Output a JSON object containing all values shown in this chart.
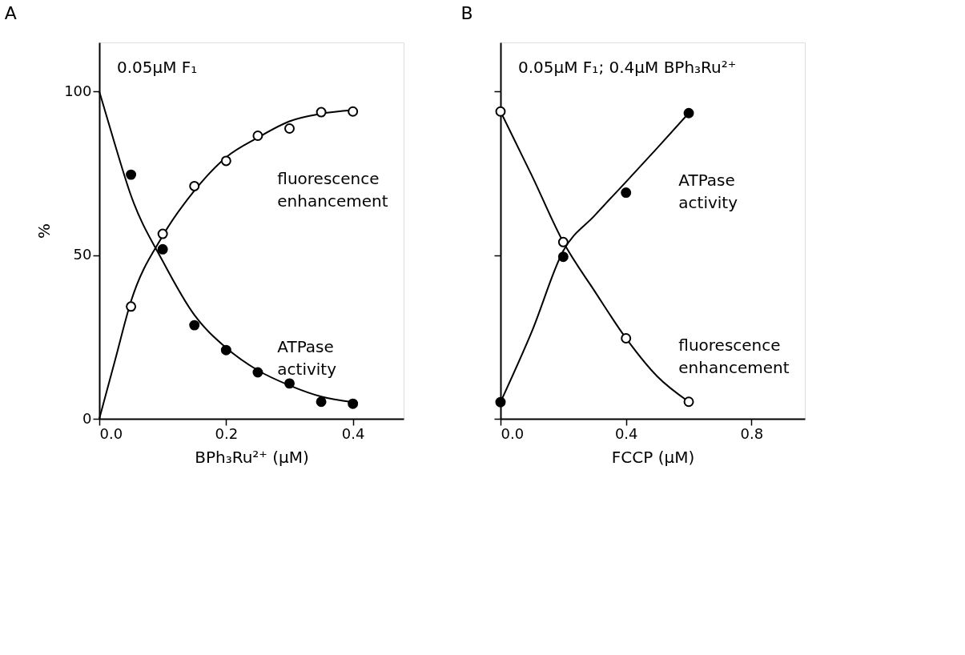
{
  "chart_data": [
    {
      "type": "scatter",
      "title": "A",
      "xlabel": "BPh₃Ru²⁺ (μM)",
      "ylabel": "%",
      "xlim": [
        0,
        0.48
      ],
      "ylim": [
        0,
        115
      ],
      "xticks": [
        {
          "value": 0,
          "label": "0.0"
        },
        0.2,
        0.4
      ],
      "yticks": [
        0,
        50,
        100
      ],
      "grid": false,
      "annotations": [
        "0.05μM F₁"
      ],
      "series": [
        {
          "type": "line",
          "color": "#000000",
          "x": [
            0,
            0.025,
            0.05,
            0.1,
            0.15,
            0.2,
            0.25,
            0.3,
            0.35,
            0.4
          ],
          "values": [
            0,
            18,
            35.9,
            55.9,
            69.7,
            79.9,
            85.9,
            90.9,
            93.2,
            94.3
          ]
        },
        {
          "type": "line",
          "color": "#000000",
          "x": [
            0,
            0.025,
            0.05,
            0.1,
            0.15,
            0.2,
            0.25,
            0.3,
            0.35,
            0.4
          ],
          "values": [
            100,
            83.6,
            68.2,
            48.2,
            31.7,
            21.7,
            14.8,
            10.2,
            6.8,
            5.1
          ]
        },
        {
          "name": "fluorescence enhancement",
          "marker": "circle",
          "color": "#ffffff",
          "x": [
            0.05,
            0.1,
            0.15,
            0.2,
            0.25,
            0.3,
            0.35,
            0.4
          ],
          "values": [
            34.3,
            56.5,
            71.1,
            78.8,
            86.5,
            88.7,
            93.7,
            93.9
          ]
        },
        {
          "name": "ATPase activity",
          "marker": "circle",
          "color": "#000000",
          "x": [
            0.05,
            0.1,
            0.15,
            0.2,
            0.25,
            0.3,
            0.35,
            0.4
          ],
          "values": [
            74.6,
            51.8,
            28.6,
            21.0,
            14.2,
            10.8,
            5.2,
            4.6
          ]
        }
      ]
    },
    {
      "type": "scatter",
      "title": "B",
      "xlabel": "FCCP (μM)",
      "xlim": [
        0,
        0.97
      ],
      "ylim": [
        0,
        115
      ],
      "xticks": [
        {
          "value": 0,
          "label": "0.0"
        },
        0.4,
        0.8
      ],
      "yticks": [
        0,
        50,
        100
      ],
      "tick_labels": "x",
      "grid": false,
      "annotations": [
        "0.05μM F₁; 0.4μM BPh₃Ru²⁺"
      ],
      "series": [
        {
          "type": "line",
          "color": "#000000",
          "x": [
            0,
            0.1,
            0.2,
            0.3,
            0.4,
            0.5,
            0.6
          ],
          "values": [
            5.1,
            26.7,
            51.3,
            62.1,
            72.4,
            82.8,
            93.4
          ]
        },
        {
          "type": "line",
          "color": "#000000",
          "x": [
            0,
            0.1,
            0.2,
            0.3,
            0.4,
            0.5,
            0.6
          ],
          "values": [
            93.9,
            74.3,
            54.0,
            39.0,
            24.6,
            12.9,
            5.2
          ]
        },
        {
          "name": "fluorescence enhancement",
          "marker": "circle",
          "color": "#ffffff",
          "x": [
            0,
            0.2,
            0.4,
            0.6
          ],
          "values": [
            93.9,
            54.0,
            24.6,
            5.2
          ]
        },
        {
          "name": "ATPase activity",
          "marker": "circle",
          "color": "#000000",
          "x": [
            0,
            0.2,
            0.4,
            0.6
          ],
          "values": [
            5.1,
            49.5,
            69.1,
            93.4
          ]
        }
      ]
    }
  ]
}
